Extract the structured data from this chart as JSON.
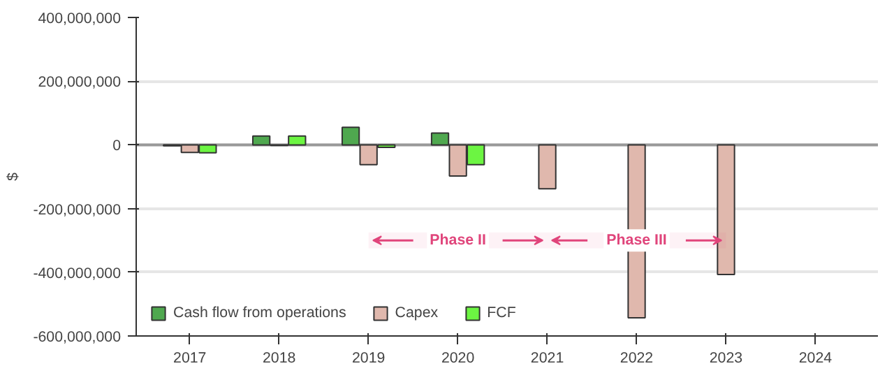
{
  "chart_data": {
    "type": "bar",
    "ylabel": "$",
    "categories": [
      "2017",
      "2018",
      "2019",
      "2020",
      "2021",
      "2022",
      "2023",
      "2024"
    ],
    "series": [
      {
        "name": "Cash flow from operations",
        "color": "#4fa84f",
        "values": [
          -3000000,
          28000000,
          55000000,
          37000000,
          null,
          null,
          null,
          null
        ]
      },
      {
        "name": "Capex",
        "color": "#e0b8ad",
        "values": [
          -24000000,
          -2000000,
          -62000000,
          -98000000,
          -138000000,
          -543000000,
          -407000000,
          null
        ]
      },
      {
        "name": "FCF",
        "color": "#6cf542",
        "values": [
          -25000000,
          28000000,
          -8000000,
          -62000000,
          null,
          null,
          null,
          null
        ]
      }
    ],
    "ylim": [
      -600000000,
      400000000
    ],
    "yticks": [
      {
        "value": -600000000,
        "label": "-600,000,000"
      },
      {
        "value": -400000000,
        "label": "-400,000,000"
      },
      {
        "value": -200000000,
        "label": "-200,000,000"
      },
      0,
      {
        "value": 200000000,
        "label": "200,000,000"
      },
      {
        "value": 400000000,
        "label": "400,000,000"
      }
    ],
    "bands": [
      {
        "axis": "x",
        "from": "2019",
        "to": "2021",
        "label": "Phase II",
        "color": "#e0457b"
      },
      {
        "axis": "x",
        "from": "2021",
        "to": "2023",
        "label": "Phase III",
        "color": "#e0457b"
      }
    ],
    "grid": "y",
    "legend": "bottom left"
  }
}
